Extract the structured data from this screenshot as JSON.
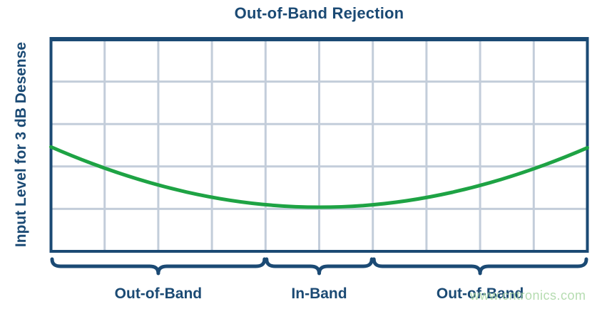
{
  "page": {
    "background": "#ffffff"
  },
  "watermark": {
    "text": "www.cntronics.com",
    "color": "#a9d6a3"
  },
  "chart_data": {
    "type": "line",
    "title": "Out-of-Band Rejection",
    "xlabel": "",
    "ylabel": "Input Level for 3 dB Desense",
    "x_tick_labels": [],
    "y_tick_labels": [],
    "grid": {
      "on": true,
      "cols": 10,
      "rows": 5,
      "color": "#c3cdda"
    },
    "colors": {
      "navy": "#1b4a74",
      "green": "#1ea344",
      "grid": "#c3cdda"
    },
    "bands": [
      {
        "label": "Out-of-Band",
        "from": 0.0,
        "to": 0.4
      },
      {
        "label": "In-Band",
        "from": 0.4,
        "to": 0.6
      },
      {
        "label": "Out-of-Band",
        "from": 0.6,
        "to": 1.0
      }
    ],
    "series": [
      {
        "name": "Input Level for 3 dB Desense",
        "color": "#1ea344",
        "x_norm": [
          0,
          0.102,
          0.203,
          0.302,
          0.401,
          0.5,
          0.599,
          0.698,
          0.797,
          0.898,
          1
        ],
        "y_norm": [
          0.508,
          0.61,
          0.69,
          0.747,
          0.781,
          0.792,
          0.781,
          0.748,
          0.692,
          0.613,
          0.512
        ],
        "bezier_norm": {
          "p0": [
            0,
            0.508
          ],
          "c1": [
            0.344,
            0.886
          ],
          "c2": [
            0.656,
            0.886
          ],
          "p1": [
            1,
            0.512
          ]
        }
      }
    ]
  }
}
